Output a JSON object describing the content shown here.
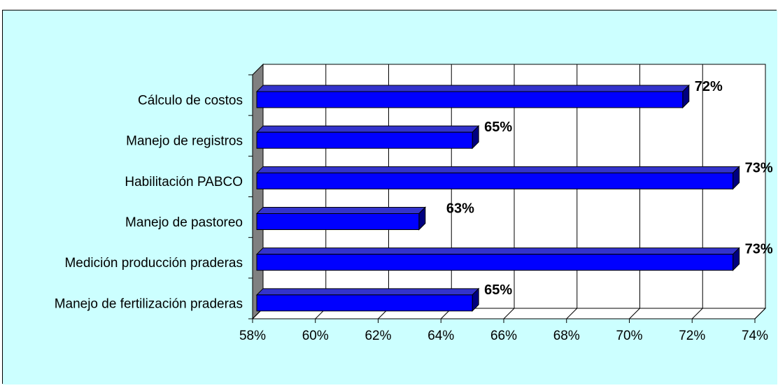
{
  "chart_data": {
    "type": "bar",
    "orientation": "horizontal",
    "style": "3d",
    "categories": [
      "Cálculo de costos",
      "Manejo de registros",
      "Habilitación PABCO",
      "Manejo de pastoreo",
      "Medición producción praderas",
      "Manejo de fertilización praderas"
    ],
    "values": [
      71.7,
      65.0,
      73.3,
      63.3,
      73.3,
      65.0
    ],
    "data_labels": [
      "72%",
      "65%",
      "73%",
      "63%",
      "73%",
      "65%"
    ],
    "xlim": [
      58,
      74
    ],
    "x_ticks": [
      58,
      60,
      62,
      64,
      66,
      68,
      70,
      72,
      74
    ],
    "x_tick_labels": [
      "58%",
      "60%",
      "62%",
      "64%",
      "66%",
      "68%",
      "70%",
      "72%",
      "74%"
    ],
    "grid": true,
    "legend": "none",
    "colors": {
      "chart_area": "#ccffff",
      "plot_back": "#ffffff",
      "side_wall": "#808080",
      "bar_front": "#0000ff",
      "bar_top": "#3333cc",
      "bar_side": "#000080",
      "gridline": "#000000"
    }
  }
}
